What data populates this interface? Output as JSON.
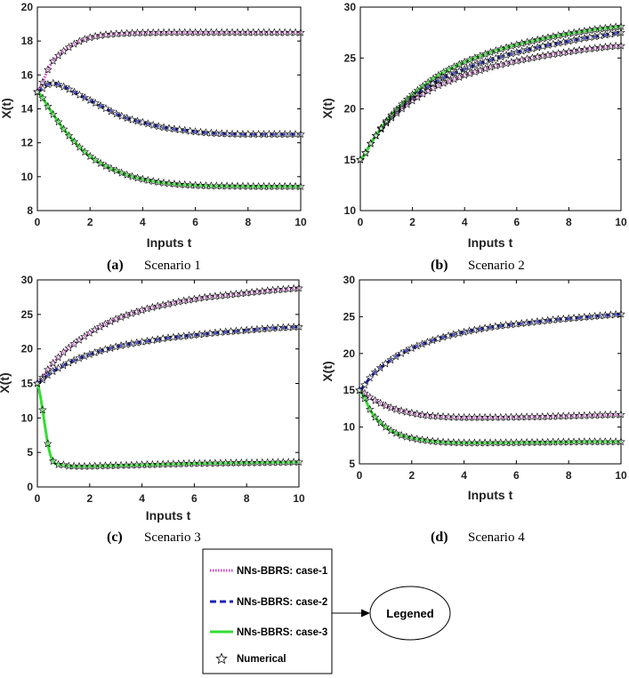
{
  "chart_data": [
    {
      "type": "line",
      "panel": "a",
      "caption_letter": "(a)",
      "caption_text": "Scenario 1",
      "xlabel": "Inputs t",
      "ylabel": "X(t)",
      "xlim": [
        0,
        10
      ],
      "ylim": [
        8,
        20
      ],
      "xticks": [
        0,
        2,
        4,
        6,
        8,
        10
      ],
      "yticks": [
        8,
        10,
        12,
        14,
        16,
        18,
        20
      ],
      "x": [
        0,
        0.5,
        1,
        1.5,
        2,
        2.5,
        3,
        3.5,
        4,
        4.5,
        5,
        5.5,
        6,
        6.5,
        7,
        7.5,
        8,
        8.5,
        9,
        9.5,
        10
      ],
      "series": [
        {
          "name": "case-1",
          "values": [
            15,
            16.6,
            17.4,
            17.9,
            18.2,
            18.35,
            18.42,
            18.46,
            18.48,
            18.49,
            18.5,
            18.5,
            18.5,
            18.5,
            18.5,
            18.5,
            18.5,
            18.5,
            18.5,
            18.5,
            18.5
          ]
        },
        {
          "name": "case-2",
          "values": [
            15,
            15.5,
            15.3,
            14.9,
            14.5,
            14.1,
            13.7,
            13.4,
            13.2,
            13.0,
            12.85,
            12.75,
            12.65,
            12.58,
            12.54,
            12.51,
            12.5,
            12.5,
            12.5,
            12.5,
            12.5
          ]
        },
        {
          "name": "case-3",
          "values": [
            15,
            13.9,
            12.8,
            11.9,
            11.2,
            10.7,
            10.35,
            10.05,
            9.85,
            9.7,
            9.6,
            9.53,
            9.49,
            9.46,
            9.45,
            9.44,
            9.43,
            9.42,
            9.42,
            9.42,
            9.42
          ]
        }
      ]
    },
    {
      "type": "line",
      "panel": "b",
      "caption_letter": "(b)",
      "caption_text": "Scenario 2",
      "xlabel": "Inputs t",
      "ylabel": "X(t)",
      "xlim": [
        0,
        10
      ],
      "ylim": [
        10,
        30
      ],
      "xticks": [
        0,
        2,
        4,
        6,
        8,
        10
      ],
      "yticks": [
        10,
        15,
        20,
        25,
        30
      ],
      "x": [
        0,
        0.5,
        1,
        1.5,
        2,
        2.5,
        3,
        3.5,
        4,
        4.5,
        5,
        5.5,
        6,
        6.5,
        7,
        7.5,
        8,
        8.5,
        9,
        9.5,
        10
      ],
      "series": [
        {
          "name": "case-1",
          "values": [
            15,
            17.0,
            18.6,
            19.8,
            20.8,
            21.6,
            22.3,
            22.8,
            23.3,
            23.7,
            24.1,
            24.4,
            24.7,
            24.95,
            25.2,
            25.4,
            25.6,
            25.8,
            25.95,
            26.1,
            26.2
          ]
        },
        {
          "name": "case-2",
          "values": [
            15,
            17.0,
            18.7,
            20.0,
            21.1,
            22.0,
            22.8,
            23.4,
            23.9,
            24.4,
            24.8,
            25.2,
            25.55,
            25.85,
            26.15,
            26.4,
            26.65,
            26.9,
            27.1,
            27.3,
            27.5
          ]
        },
        {
          "name": "case-3",
          "values": [
            15,
            17.0,
            18.8,
            20.2,
            21.4,
            22.4,
            23.3,
            24.0,
            24.6,
            25.1,
            25.55,
            25.95,
            26.3,
            26.6,
            26.9,
            27.15,
            27.4,
            27.6,
            27.8,
            27.95,
            28.1
          ]
        }
      ]
    },
    {
      "type": "line",
      "panel": "c",
      "caption_letter": "(c)",
      "caption_text": "Scenario 3",
      "xlabel": "Inputs t",
      "ylabel": "X(t)",
      "xlim": [
        0,
        10
      ],
      "ylim": [
        0,
        30
      ],
      "xticks": [
        0,
        2,
        4,
        6,
        8,
        10
      ],
      "yticks": [
        0,
        5,
        10,
        15,
        20,
        25,
        30
      ],
      "x": [
        0,
        0.5,
        1,
        1.5,
        2,
        2.5,
        3,
        3.5,
        4,
        4.5,
        5,
        5.5,
        6,
        6.5,
        7,
        7.5,
        8,
        8.5,
        9,
        9.5,
        10
      ],
      "series": [
        {
          "name": "case-1",
          "values": [
            15,
            17.5,
            19.5,
            21.0,
            22.3,
            23.4,
            24.3,
            25.0,
            25.6,
            26.1,
            26.5,
            26.9,
            27.2,
            27.5,
            27.7,
            27.9,
            28.1,
            28.3,
            28.5,
            28.65,
            28.8
          ]
        },
        {
          "name": "case-2",
          "values": [
            15,
            16.5,
            17.6,
            18.5,
            19.2,
            19.8,
            20.3,
            20.7,
            21.0,
            21.3,
            21.6,
            21.8,
            22.0,
            22.2,
            22.4,
            22.55,
            22.7,
            22.85,
            23.0,
            23.1,
            23.2
          ]
        },
        {
          "name": "case-3",
          "values": [
            15,
            4.6,
            3.2,
            3.0,
            3.0,
            3.05,
            3.1,
            3.15,
            3.2,
            3.25,
            3.3,
            3.35,
            3.4,
            3.42,
            3.45,
            3.48,
            3.5,
            3.52,
            3.55,
            3.57,
            3.6
          ]
        }
      ]
    },
    {
      "type": "line",
      "panel": "d",
      "caption_letter": "(d)",
      "caption_text": "Scenario 4",
      "xlabel": "Inputs t",
      "ylabel": "X(t)",
      "xlim": [
        0,
        10
      ],
      "ylim": [
        5,
        30
      ],
      "xticks": [
        0,
        2,
        4,
        6,
        8,
        10
      ],
      "yticks": [
        5,
        10,
        15,
        20,
        25,
        30
      ],
      "x": [
        0,
        0.5,
        1,
        1.5,
        2,
        2.5,
        3,
        3.5,
        4,
        4.5,
        5,
        5.5,
        6,
        6.5,
        7,
        7.5,
        8,
        8.5,
        9,
        9.5,
        10
      ],
      "series": [
        {
          "name": "case-1",
          "values": [
            15,
            13.8,
            12.9,
            12.3,
            11.9,
            11.6,
            11.45,
            11.35,
            11.3,
            11.3,
            11.3,
            11.32,
            11.35,
            11.38,
            11.4,
            11.45,
            11.5,
            11.55,
            11.6,
            11.65,
            11.7
          ]
        },
        {
          "name": "case-2",
          "values": [
            15,
            17.1,
            18.6,
            19.8,
            20.7,
            21.4,
            22.0,
            22.5,
            22.9,
            23.25,
            23.55,
            23.8,
            24.0,
            24.2,
            24.4,
            24.6,
            24.75,
            24.9,
            25.05,
            25.2,
            25.35
          ]
        },
        {
          "name": "case-3",
          "values": [
            15,
            11.8,
            10.0,
            9.0,
            8.5,
            8.2,
            8.0,
            7.9,
            7.85,
            7.85,
            7.85,
            7.87,
            7.88,
            7.9,
            7.92,
            7.95,
            7.97,
            8.0,
            8.0,
            8.0,
            8.0
          ]
        }
      ]
    }
  ],
  "legend": {
    "entries": [
      {
        "label": "NNs-BBRS: case-1",
        "color": "#cc44cc",
        "style": "dotted"
      },
      {
        "label": "NNs-BBRS: case-2",
        "color": "#1c23b5",
        "style": "dashed"
      },
      {
        "label": "NNs-BBRS: case-3",
        "color": "#33dd33",
        "style": "solid"
      },
      {
        "label": "Numerical",
        "color": "#000000",
        "style": "star"
      }
    ],
    "callout_label": "Legened"
  }
}
